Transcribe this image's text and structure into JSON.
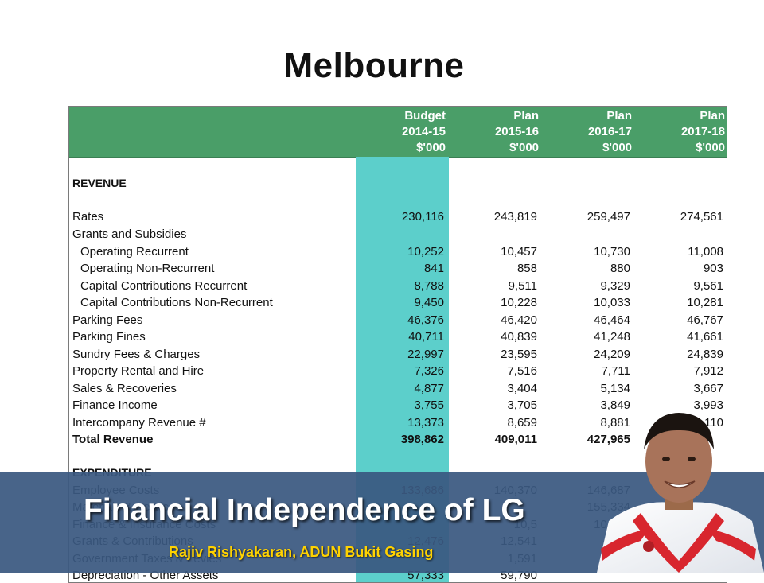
{
  "slide": {
    "title": "Melbourne"
  },
  "table": {
    "headers": [
      {
        "l1": "Budget",
        "l2": "2014-15",
        "l3": "$'000"
      },
      {
        "l1": "Plan",
        "l2": "2015-16",
        "l3": "$'000"
      },
      {
        "l1": "Plan",
        "l2": "2016-17",
        "l3": "$'000"
      },
      {
        "l1": "Plan",
        "l2": "2017-18",
        "l3": "$'000"
      }
    ],
    "rows": [
      {
        "label": "REVENUE",
        "type": "section",
        "values": []
      },
      {
        "label": "Rates",
        "values": [
          "230,116",
          "243,819",
          "259,497",
          "274,561"
        ]
      },
      {
        "label": "Grants and Subsidies",
        "values": []
      },
      {
        "label": "Operating Recurrent",
        "indent": true,
        "values": [
          "10,252",
          "10,457",
          "10,730",
          "11,008"
        ]
      },
      {
        "label": "Operating Non-Recurrent",
        "indent": true,
        "values": [
          "841",
          "858",
          "880",
          "903"
        ]
      },
      {
        "label": "Capital Contributions Recurrent",
        "indent": true,
        "values": [
          "8,788",
          "9,511",
          "9,329",
          "9,561"
        ]
      },
      {
        "label": "Capital Contributions Non-Recurrent",
        "indent": true,
        "values": [
          "9,450",
          "10,228",
          "10,033",
          "10,281"
        ]
      },
      {
        "label": "Parking Fees",
        "values": [
          "46,376",
          "46,420",
          "46,464",
          "46,767"
        ]
      },
      {
        "label": "Parking Fines",
        "values": [
          "40,711",
          "40,839",
          "41,248",
          "41,661"
        ]
      },
      {
        "label": "Sundry Fees & Charges",
        "values": [
          "22,997",
          "23,595",
          "24,209",
          "24,839"
        ]
      },
      {
        "label": "Property Rental and Hire",
        "values": [
          "7,326",
          "7,516",
          "7,711",
          "7,912"
        ]
      },
      {
        "label": "Sales & Recoveries",
        "values": [
          "4,877",
          "3,404",
          "5,134",
          "3,667"
        ]
      },
      {
        "label": "Finance Income",
        "values": [
          "3,755",
          "3,705",
          "3,849",
          "3,993"
        ]
      },
      {
        "label": "Intercompany Revenue #",
        "values": [
          "13,373",
          "8,659",
          "8,881",
          "110"
        ]
      },
      {
        "label": "Total Revenue",
        "type": "total",
        "values": [
          "398,862",
          "409,011",
          "427,965",
          ""
        ]
      },
      {
        "label": "EXPENDITURE",
        "type": "section",
        "values": []
      },
      {
        "label": "Employee Costs",
        "values": [
          "133,686",
          "140,370",
          "146,687",
          ""
        ]
      },
      {
        "label": "Materials & Services",
        "values": [
          "",
          "",
          "155,334",
          ""
        ]
      },
      {
        "label": "Finance & Insurance Costs",
        "values": [
          "",
          "10,5",
          "10,873",
          ""
        ]
      },
      {
        "label": "Grants & Contributions",
        "values": [
          "12,476",
          "12,541",
          "12,9",
          ""
        ]
      },
      {
        "label": "Government Taxes & Levies",
        "values": [
          "",
          "1,591",
          "1,",
          ""
        ]
      },
      {
        "label": "Depreciation - Other Assets",
        "values": [
          "57,333",
          "59,790",
          "",
          ""
        ]
      }
    ]
  },
  "banner": {
    "title": "Financial Independence of LG",
    "subtitle": "Rajiv Rishyakaran,  ADUN Bukit Gasing"
  },
  "colors": {
    "header": "#4a9e68",
    "highlight": "#5ccfcb",
    "banner": "#3a5880",
    "subtitle": "#ffd200"
  }
}
